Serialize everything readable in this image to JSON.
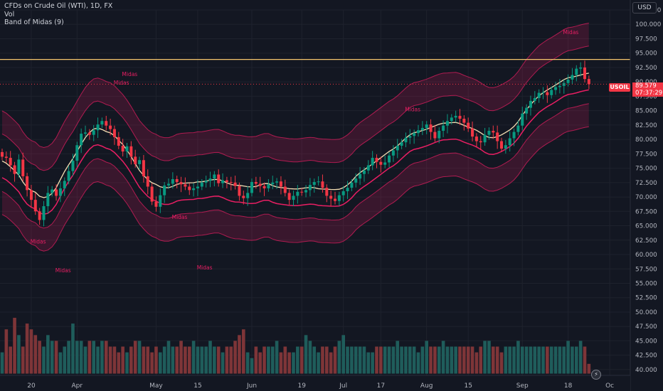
{
  "legend": {
    "title": "CFDs on Crude Oil (WTI), 1D, FX",
    "vol": "Vol",
    "indicator": "Band of Midas (9)"
  },
  "currency": "USD",
  "price_tag": "USOIL",
  "last_price": "89.579",
  "countdown": "07:37:29",
  "colors": {
    "background": "#131722",
    "grid": "#1e222d",
    "up": "#089981",
    "down": "#f23645",
    "vol_up": "#1f5d5b",
    "vol_down": "#7e3538",
    "band": "#e91e63",
    "midas": "#f5deb3",
    "hline": "#f5c56b"
  },
  "chart_data": {
    "type": "candlestick",
    "y_axis": {
      "range": [
        39,
        102.5
      ],
      "tick_labels": [
        "40.000",
        "42.500",
        "45.000",
        "47.500",
        "50.000",
        "52.500",
        "55.000",
        "57.500",
        "60.000",
        "62.500",
        "65.000",
        "67.500",
        "70.000",
        "72.500",
        "75.000",
        "77.500",
        "80.000",
        "82.500",
        "85.000",
        "87.500",
        "90.000",
        "92.500",
        "95.000",
        "97.500",
        "100.000",
        "102.500"
      ]
    },
    "x_axis": {
      "tick_labels": [
        "20",
        "Apr",
        "May",
        "15",
        "Jun",
        "19",
        "Jul",
        "17",
        "Aug",
        "15",
        "Sep",
        "18",
        "Oc"
      ],
      "tick_bar_index": [
        7,
        18,
        37,
        47,
        60,
        72,
        82,
        91,
        102,
        112,
        125,
        136,
        146
      ]
    },
    "horizontal_line": 93.9,
    "current_price_line": 89.6,
    "close": [
      77,
      76.8,
      75.5,
      74,
      76.5,
      73.6,
      71.2,
      69.5,
      67.5,
      66,
      68.4,
      70.7,
      71.3,
      70.2,
      71.5,
      72.8,
      74.5,
      76.3,
      79,
      81,
      81.2,
      80.8,
      81.6,
      82.6,
      83.2,
      82.4,
      81.8,
      80.4,
      78.9,
      77.9,
      78.8,
      77,
      75.7,
      76.4,
      73.6,
      71.8,
      69.2,
      68.3,
      70.3,
      72,
      72.3,
      73.1,
      72.6,
      72.2,
      71.8,
      71.2,
      71.5,
      71.8,
      72.5,
      72.8,
      73.2,
      73.9,
      72.4,
      72.9,
      72.6,
      72.5,
      71.9,
      70.2,
      69.8,
      70.7,
      72.6,
      72.3,
      71.9,
      71.5,
      72.2,
      72.5,
      72.7,
      71.8,
      70.7,
      69.5,
      70.2,
      70.9,
      70.8,
      71.2,
      72.1,
      72.6,
      72.7,
      71.6,
      70.2,
      69.7,
      69.3,
      70.3,
      71,
      71.6,
      72.5,
      73.2,
      74,
      74.6,
      75.5,
      76.8,
      76.1,
      75.6,
      76,
      77.2,
      78.1,
      78.9,
      79.5,
      80.3,
      80.6,
      81.1,
      81.6,
      82,
      82.6,
      81.3,
      80.2,
      81.5,
      82.4,
      83.2,
      83.8,
      84.1,
      83.6,
      82.9,
      81.9,
      80.5,
      79.7,
      79.5,
      80.8,
      81.5,
      81.2,
      79.7,
      78.4,
      79,
      80.2,
      81.3,
      82.4,
      84.5,
      85.5,
      86.7,
      87.2,
      88.1,
      88.2,
      87.7,
      88.6,
      89.1,
      89.3,
      89.8,
      90.4,
      91.2,
      92.3,
      92.5,
      90.5,
      89.6
    ],
    "volume": [
      43,
      47,
      44,
      49,
      46,
      44,
      48,
      47,
      46,
      45,
      44,
      46,
      45,
      45,
      43,
      44,
      45,
      48,
      45,
      45,
      44,
      45,
      45,
      44,
      45,
      45,
      44,
      44,
      43,
      44,
      43,
      44,
      45,
      45,
      44,
      44,
      43,
      44,
      43,
      44,
      45,
      44,
      44,
      45,
      44,
      44,
      45,
      44,
      44,
      44,
      45,
      44,
      44,
      43,
      44,
      44,
      45,
      46,
      47,
      43,
      42,
      44,
      43,
      44,
      44,
      44,
      45,
      43,
      44,
      43,
      43,
      44,
      44,
      46,
      45,
      44,
      43,
      44,
      44,
      43,
      44,
      45,
      46,
      44,
      44,
      44,
      44,
      44,
      43,
      43,
      44,
      44,
      44,
      44,
      44,
      45,
      44,
      44,
      44,
      44,
      43,
      44,
      45,
      44,
      44,
      44,
      45,
      44,
      44,
      44,
      44,
      44,
      44,
      44,
      43,
      44,
      45,
      45,
      44,
      44,
      43,
      44,
      44,
      44,
      45,
      44,
      44,
      44,
      44,
      44,
      44,
      44,
      44,
      44,
      44,
      44,
      45,
      44,
      44,
      45,
      44,
      41
    ],
    "series": [
      {
        "name": "Midas",
        "values": []
      }
    ],
    "series_labels": [
      "Midas",
      "Midas",
      "Midas",
      "Midas",
      "Midas",
      "Midas",
      "Midas",
      "Midas"
    ]
  }
}
